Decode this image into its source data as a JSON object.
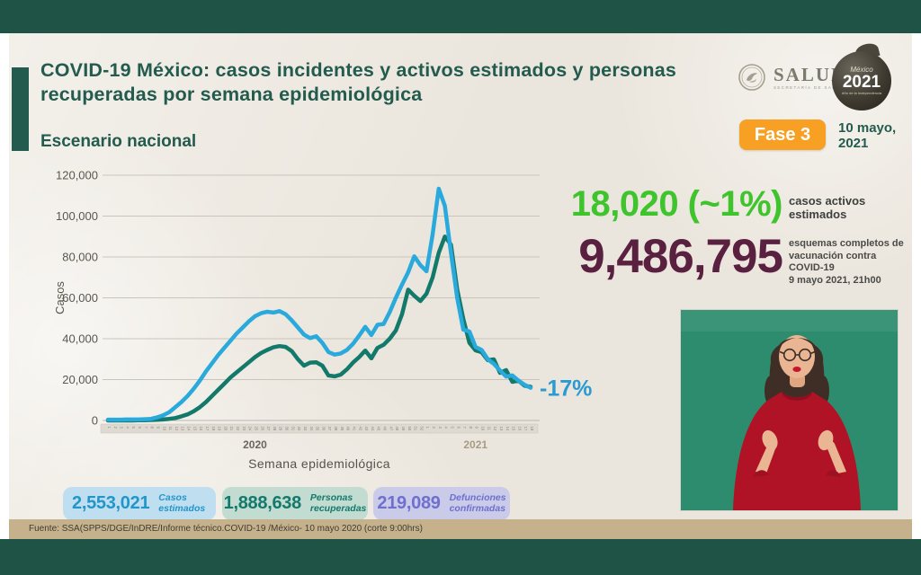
{
  "header": {
    "title": "COVID-19 México: casos incidentes y activos estimados y personas recuperadas por semana epidemiológica",
    "subtitle": "Escenario nacional",
    "salud_logo": {
      "label": "SALUD",
      "sublabel": "SECRETARÍA DE SALUD"
    },
    "mexico_logo": {
      "line1": "México",
      "line2": "2021",
      "line3": "Año de la Independencia"
    },
    "phase_badge": "Fase 3",
    "date": "10 mayo, 2021"
  },
  "chart_data": {
    "type": "line",
    "title": "Casos incidentes y activos estimados y personas recuperadas por semana epidemiológica, escenario nacional",
    "ylabel": "Casos",
    "xlabel": "Semana epidemiológica",
    "ylim": [
      0,
      120000
    ],
    "y_ticks": [
      0,
      20000,
      40000,
      60000,
      80000,
      100000,
      120000
    ],
    "grid": true,
    "legend_position": "none",
    "x_year_labels": [
      {
        "label": "2020",
        "week_index": 24,
        "color": "#6b675e"
      },
      {
        "label": "2021",
        "week_index": 60,
        "color": "#a79b83"
      }
    ],
    "x_week_labels": [
      "1",
      "2",
      "3",
      "4",
      "5",
      "6",
      "7",
      "8",
      "9",
      "10",
      "11",
      "12",
      "13",
      "14",
      "15",
      "16",
      "17",
      "18",
      "19",
      "20",
      "21",
      "22",
      "23",
      "24",
      "25",
      "26",
      "27",
      "28",
      "29",
      "30",
      "31",
      "32",
      "33",
      "34",
      "35",
      "36",
      "37",
      "38",
      "39",
      "40",
      "41",
      "42",
      "43",
      "44",
      "45",
      "46",
      "47",
      "48",
      "49",
      "50",
      "51",
      "52",
      "1",
      "2",
      "3",
      "4",
      "5",
      "6",
      "7",
      "8",
      "9",
      "10",
      "11",
      "12",
      "13",
      "14",
      "15",
      "16",
      "17",
      "18"
    ],
    "series": [
      {
        "name": "Personas recuperadas",
        "color": "#13796b",
        "values": [
          0,
          0,
          0,
          0,
          0,
          100,
          100,
          200,
          300,
          500,
          800,
          1200,
          2000,
          3000,
          4500,
          6500,
          9000,
          12000,
          15000,
          18000,
          21000,
          23500,
          26000,
          28500,
          31000,
          33000,
          34500,
          35800,
          36400,
          36000,
          34000,
          30000,
          26800,
          28300,
          28500,
          26800,
          22000,
          21600,
          22400,
          25000,
          28300,
          31000,
          34200,
          30400,
          35500,
          37000,
          40000,
          44000,
          52000,
          64000,
          61000,
          58400,
          62000,
          70000,
          82000,
          90000,
          86000,
          64200,
          49700,
          38000,
          34300,
          33400,
          29500,
          29900,
          23300,
          24600,
          18900,
          19500,
          17000,
          16500
        ]
      },
      {
        "name": "Casos incidentes estimados",
        "color": "#29a9dc",
        "values": [
          400,
          400,
          400,
          500,
          500,
          500,
          600,
          800,
          1500,
          2500,
          4000,
          6500,
          9000,
          12000,
          15500,
          19500,
          24000,
          28000,
          32000,
          35500,
          39000,
          42500,
          45500,
          48500,
          51000,
          52500,
          53200,
          52800,
          53500,
          52000,
          49000,
          45500,
          42000,
          40300,
          41200,
          38000,
          33500,
          32200,
          32800,
          34500,
          37500,
          41500,
          45800,
          41800,
          46800,
          47200,
          53000,
          60000,
          66500,
          72500,
          80300,
          76000,
          73000,
          91000,
          113400,
          105000,
          82000,
          60000,
          44500,
          43500,
          36000,
          34500,
          30000,
          27700,
          24500,
          21500,
          22000,
          19500,
          17500,
          16000
        ]
      }
    ],
    "annotation": {
      "text": "-17%",
      "color": "#2a9ad0"
    }
  },
  "highlights": {
    "active_cases": {
      "value": "18,020 (~1%)",
      "label": "casos activos estimados",
      "color": "#3fc42d"
    },
    "vaccination": {
      "value": "9,486,795",
      "label": "esquemas completos de vacunación contra COVID-19",
      "sublabel": "9 mayo 2021, 21h00",
      "color": "#5a2040"
    }
  },
  "stats_pills": [
    {
      "value": "2,553,021",
      "label": "Casos estimados",
      "bg": "#bfdff0",
      "color": "#2196cb"
    },
    {
      "value": "1,888,638",
      "label": "Personas recuperadas",
      "bg": "#c2dcd2",
      "color": "#13796b"
    },
    {
      "value": "219,089",
      "label": "Defunciones confirmadas",
      "bg": "#cacae9",
      "color": "#6f6fd0"
    }
  ],
  "footer": {
    "source": "Fuente: SSA(SPPS/DGE/InDRE/Informe técnico.COVID-19 /México- 10 mayo 2020 (corte 9:00hrs)"
  }
}
